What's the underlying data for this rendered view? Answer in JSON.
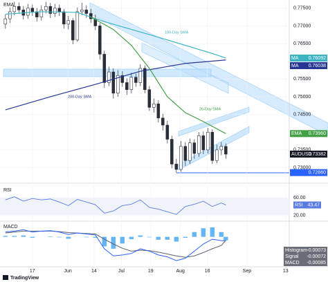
{
  "branding": "TradingView",
  "chart_data": [
    {
      "type": "candlestick",
      "title": "EMA",
      "open": [
        0.7705,
        0.772,
        0.774,
        0.7755,
        0.7745,
        0.773,
        0.775,
        0.774,
        0.7725,
        0.7745,
        0.7755,
        0.7735,
        0.775,
        0.774,
        0.7705,
        0.7715,
        0.766,
        0.774,
        0.7745,
        0.7735,
        0.772,
        0.77,
        0.762,
        0.754,
        0.757,
        0.751,
        0.756,
        0.754,
        0.752,
        0.7555,
        0.754,
        0.758,
        0.752,
        0.747,
        0.748,
        0.744,
        0.742,
        0.738,
        0.731,
        0.7295,
        0.736,
        0.732,
        0.737,
        0.734,
        0.739,
        0.735,
        0.74,
        0.732,
        0.735,
        0.736
      ],
      "high": [
        0.7732,
        0.7752,
        0.7768,
        0.7766,
        0.7756,
        0.7762,
        0.776,
        0.775,
        0.7758,
        0.7768,
        0.7765,
        0.7762,
        0.776,
        0.7748,
        0.7728,
        0.7722,
        0.7752,
        0.7765,
        0.7758,
        0.7748,
        0.7732,
        0.7708,
        0.763,
        0.7585,
        0.758,
        0.7575,
        0.7572,
        0.7552,
        0.7568,
        0.7565,
        0.7592,
        0.7588,
        0.753,
        0.7495,
        0.749,
        0.7452,
        0.7432,
        0.739,
        0.7325,
        0.7375,
        0.7372,
        0.7382,
        0.738,
        0.74,
        0.7402,
        0.7412,
        0.7408,
        0.7365,
        0.7372,
        0.7368
      ],
      "low": [
        0.7692,
        0.7708,
        0.773,
        0.7734,
        0.7718,
        0.772,
        0.7728,
        0.7712,
        0.7715,
        0.7735,
        0.7722,
        0.7725,
        0.7728,
        0.7692,
        0.769,
        0.7648,
        0.7655,
        0.773,
        0.7722,
        0.7708,
        0.7688,
        0.7605,
        0.7525,
        0.753,
        0.7495,
        0.75,
        0.7528,
        0.7505,
        0.751,
        0.7528,
        0.753,
        0.751,
        0.746,
        0.7455,
        0.7428,
        0.7405,
        0.7368,
        0.7298,
        0.7286,
        0.7288,
        0.7305,
        0.731,
        0.7325,
        0.733,
        0.7338,
        0.734,
        0.731,
        0.7312,
        0.7335,
        0.7325
      ],
      "close": [
        0.772,
        0.774,
        0.7755,
        0.7745,
        0.773,
        0.775,
        0.774,
        0.7725,
        0.7745,
        0.7755,
        0.7735,
        0.775,
        0.774,
        0.7705,
        0.7715,
        0.766,
        0.774,
        0.7745,
        0.7735,
        0.772,
        0.77,
        0.762,
        0.754,
        0.757,
        0.751,
        0.756,
        0.754,
        0.752,
        0.7555,
        0.754,
        0.758,
        0.752,
        0.747,
        0.748,
        0.744,
        0.742,
        0.738,
        0.731,
        0.7295,
        0.736,
        0.732,
        0.737,
        0.734,
        0.739,
        0.735,
        0.74,
        0.732,
        0.735,
        0.736,
        0.7338
      ],
      "up_color": "#ffffff",
      "down_color": "#2a2e39",
      "xlim": [
        -1.2,
        63.1
      ],
      "ylim": [
        0.7262,
        0.7773
      ],
      "yticks": [
        {
          "value": 0.775,
          "label": "0.77500"
        },
        {
          "value": 0.77,
          "label": "0.77000"
        },
        {
          "value": 0.765,
          "label": "0.76500"
        },
        {
          "value": 0.755,
          "label": "0.75500"
        },
        {
          "value": 0.75,
          "label": "0.75000"
        },
        {
          "value": 0.745,
          "label": "0.74500"
        },
        {
          "value": 0.735,
          "label": "0.73500"
        },
        {
          "value": 0.73,
          "label": "0.73000"
        }
      ],
      "grid": true,
      "series": [
        {
          "name": "100-Day SMA",
          "color": "#3bb3c3",
          "x": [
            0,
            8,
            16,
            22,
            28,
            34,
            40,
            46,
            49
          ],
          "values": [
            0.7733,
            0.774,
            0.7738,
            0.7712,
            0.769,
            0.7668,
            0.7645,
            0.7622,
            0.76092
          ]
        },
        {
          "name": "200-Day SMA",
          "color": "#283593",
          "x": [
            0,
            10,
            20,
            30,
            40,
            49
          ],
          "values": [
            0.7463,
            0.75,
            0.7535,
            0.7572,
            0.7594,
            0.76038
          ]
        },
        {
          "name": "26-Day SMA",
          "color": "#43a047",
          "x": [
            19,
            24,
            28,
            32,
            36,
            40,
            44,
            49
          ],
          "values": [
            0.7725,
            0.769,
            0.7645,
            0.758,
            0.75,
            0.7455,
            0.743,
            0.7396
          ]
        }
      ],
      "price_labels": [
        {
          "name": "MA",
          "value": 0.76092,
          "label": "0.76092",
          "color": "#3bb3c3"
        },
        {
          "name": "MA",
          "value": 0.76038,
          "label": "0.76038",
          "color": "#283593"
        },
        {
          "name": "EMA",
          "value": 0.7396,
          "label": "0.73960",
          "color": "#43a047"
        },
        {
          "name": "AUDUSD",
          "value": 0.73382,
          "label": "0.73382",
          "color": "#131722"
        },
        {
          "value": 0.7286,
          "label": "0.72860",
          "color": "#2962ff"
        }
      ]
    },
    {
      "type": "line",
      "title": "RSI",
      "name": "RSI",
      "color": "#5b7be0",
      "x": [
        0,
        2,
        4,
        6,
        8,
        10,
        12,
        14,
        16,
        18,
        20,
        22,
        24,
        26,
        28,
        30,
        32,
        34,
        36,
        38,
        40,
        42,
        44,
        46,
        48,
        49
      ],
      "values": [
        55,
        62,
        52,
        58,
        55,
        57,
        50,
        42,
        56,
        50,
        44,
        25,
        30,
        42,
        45,
        55,
        38,
        34,
        28,
        22,
        40,
        45,
        52,
        40,
        48,
        43.47
      ],
      "last": 43.47,
      "xlim": [
        -1.2,
        63.1
      ],
      "ylim": [
        10,
        88
      ],
      "yticks": [
        {
          "value": 60,
          "label": "60.00"
        },
        {
          "value": 20,
          "label": "20.00"
        }
      ]
    },
    {
      "type": "macd",
      "title": "MACD",
      "x": [
        0,
        2,
        4,
        6,
        8,
        10,
        12,
        14,
        16,
        18,
        20,
        22,
        24,
        26,
        28,
        30,
        32,
        34,
        36,
        38,
        40,
        42,
        44,
        46,
        48,
        49
      ],
      "series": [
        {
          "name": "Histogram",
          "color": "#64b5f6",
          "last": -0.00073,
          "values": [
            0.0002,
            0.0002,
            0.0003,
            -0.0002,
            0,
            0.0001,
            -0.0001,
            -0.0004,
            0,
            -0.0001,
            -0.0002,
            -0.002,
            -0.0025,
            -0.0014,
            -0.0005,
            0.0003,
            -0.0001,
            -0.0006,
            -0.0006,
            -0.001,
            -0.0002,
            0.001,
            0.0018,
            0.002,
            0.001,
            -0.00073
          ]
        },
        {
          "name": "Signal",
          "color": "#5d606b",
          "last": -0.00072,
          "values": [
            0.0008,
            0.001,
            0.0012,
            0.0012,
            0.0012,
            0.0012,
            0.0011,
            0.0009,
            0.0008,
            0.0007,
            0.0006,
            -0.0005,
            -0.0015,
            -0.0024,
            -0.003,
            -0.0028,
            -0.0029,
            -0.0032,
            -0.0036,
            -0.004,
            -0.0043,
            -0.004,
            -0.0033,
            -0.0025,
            -0.0018,
            -0.00072
          ]
        },
        {
          "name": "MACD",
          "color": "#2962ff",
          "last": -0.00085,
          "values": [
            0.001,
            0.0012,
            0.0015,
            0.001,
            0.0012,
            0.0013,
            0.001,
            0.0005,
            0.0008,
            0.0006,
            0.0004,
            -0.0025,
            -0.004,
            -0.0038,
            -0.0035,
            -0.0025,
            -0.003,
            -0.0038,
            -0.0042,
            -0.005,
            -0.0045,
            -0.003,
            -0.0015,
            -0.0005,
            -0.0008,
            -0.00085
          ]
        }
      ],
      "xlim": [
        -1.2,
        63.1
      ],
      "ylim": [
        -0.006,
        0.003
      ],
      "xticks": [
        {
          "value": 6,
          "label": "17"
        },
        {
          "value": 13.9,
          "label": "Jun"
        },
        {
          "value": 19.7,
          "label": "14"
        },
        {
          "value": 25.8,
          "label": "Jul"
        },
        {
          "value": 32.3,
          "label": "19"
        },
        {
          "value": 38.9,
          "label": "Aug"
        },
        {
          "value": 44.9,
          "label": "16"
        },
        {
          "value": 53.7,
          "label": "Sep"
        },
        {
          "value": 62.3,
          "label": "13"
        }
      ]
    }
  ]
}
